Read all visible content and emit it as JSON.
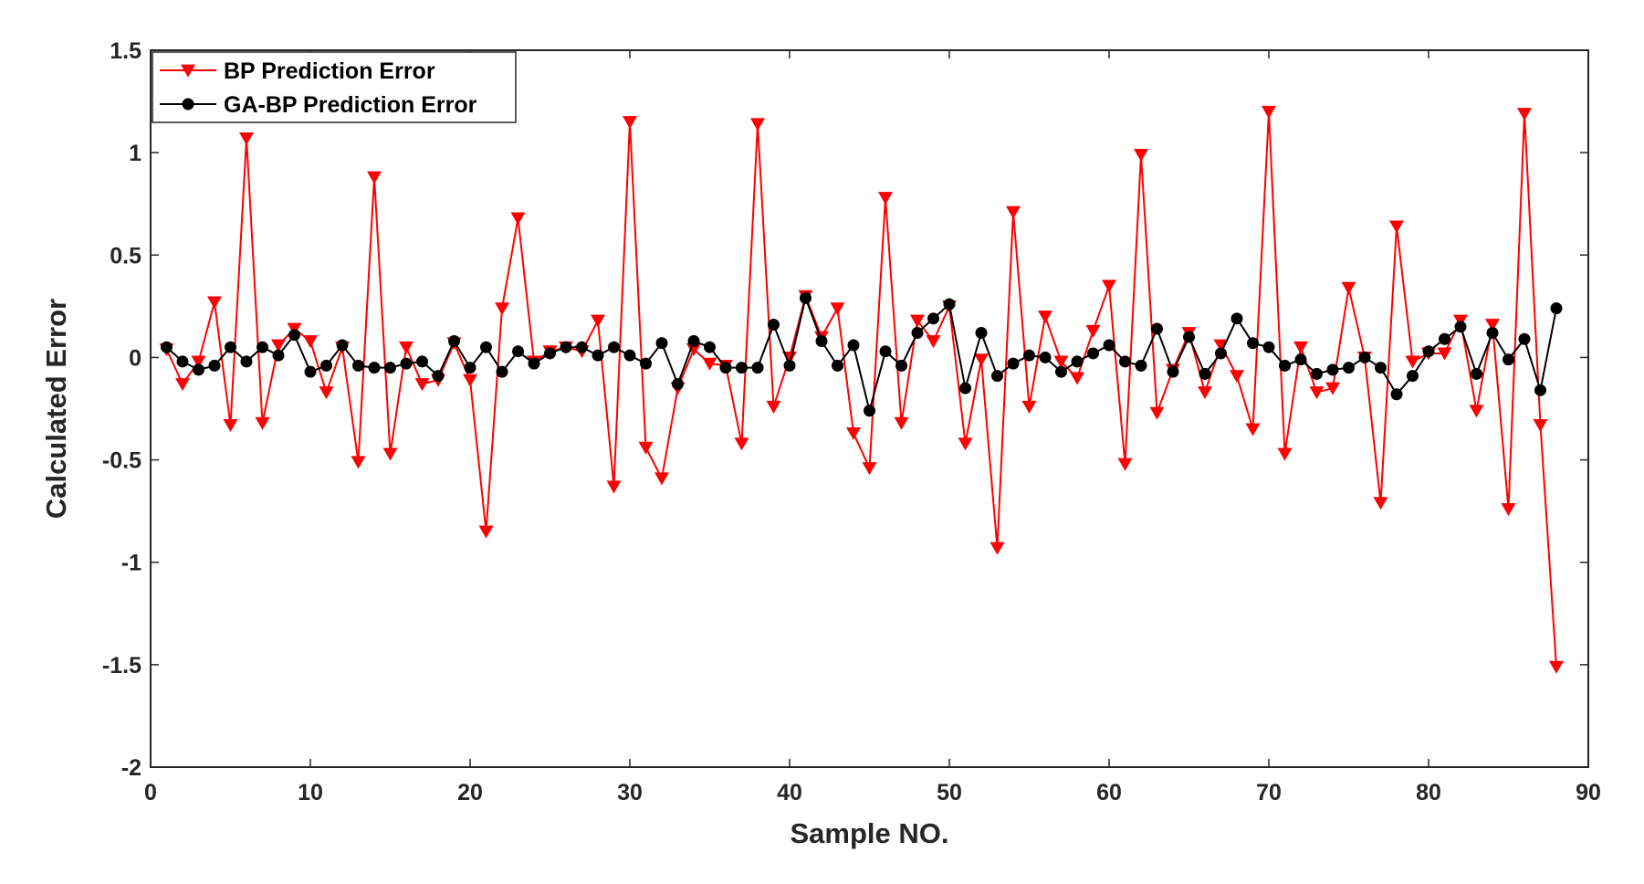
{
  "chart_data": {
    "type": "line",
    "title": "",
    "xlabel": "Sample NO.",
    "ylabel": "Calculated Error",
    "xlim": [
      0,
      90
    ],
    "ylim": [
      -2,
      1.5
    ],
    "xticks": [
      0,
      10,
      20,
      30,
      40,
      50,
      60,
      70,
      80,
      90
    ],
    "yticks": [
      -2,
      -1.5,
      -1,
      -0.5,
      0,
      0.5,
      1,
      1.5
    ],
    "xtick_labels": [
      "0",
      "10",
      "20",
      "30",
      "40",
      "50",
      "60",
      "70",
      "80",
      "90"
    ],
    "ytick_labels": [
      "-2",
      "-1.5",
      "-1",
      "-0.5",
      "0",
      "0.5",
      "1",
      "1.5"
    ],
    "grid": false,
    "legend_position": "top-left",
    "series": [
      {
        "name": "BP Prediction Error",
        "color": "#ff0000",
        "marker": "triangle-down",
        "values": [
          0.04,
          -0.13,
          -0.02,
          0.27,
          -0.33,
          1.07,
          -0.32,
          0.06,
          0.14,
          0.08,
          -0.17,
          0.05,
          -0.51,
          0.88,
          -0.47,
          0.05,
          -0.13,
          -0.11,
          0.07,
          -0.11,
          -0.85,
          0.24,
          0.68,
          -0.02,
          0.03,
          0.05,
          0.03,
          0.18,
          -0.63,
          1.15,
          -0.44,
          -0.59,
          -0.15,
          0.04,
          -0.03,
          -0.04,
          -0.42,
          1.14,
          -0.24,
          0.0,
          0.3,
          0.1,
          0.24,
          -0.37,
          -0.54,
          0.78,
          -0.32,
          0.18,
          0.08,
          0.25,
          -0.42,
          -0.01,
          -0.93,
          0.71,
          -0.24,
          0.2,
          -0.02,
          -0.1,
          0.13,
          0.35,
          -0.52,
          0.99,
          -0.27,
          -0.06,
          0.12,
          -0.17,
          0.06,
          -0.09,
          -0.35,
          1.2,
          -0.47,
          0.05,
          -0.17,
          -0.15,
          0.34,
          0.0,
          -0.71,
          0.64,
          -0.02,
          0.02,
          0.02,
          0.18,
          -0.26,
          0.16,
          -0.74,
          1.19,
          -0.33,
          -1.51
        ]
      },
      {
        "name": "GA-BP Prediction Error",
        "color": "#000000",
        "marker": "circle",
        "values": [
          0.05,
          -0.02,
          -0.06,
          -0.04,
          0.05,
          -0.02,
          0.05,
          0.01,
          0.11,
          -0.07,
          -0.04,
          0.06,
          -0.04,
          -0.05,
          -0.05,
          -0.03,
          -0.02,
          -0.09,
          0.08,
          -0.05,
          0.05,
          -0.07,
          0.03,
          -0.03,
          0.02,
          0.05,
          0.05,
          0.01,
          0.05,
          0.01,
          -0.03,
          0.07,
          -0.13,
          0.08,
          0.05,
          -0.05,
          -0.05,
          -0.05,
          0.16,
          -0.04,
          0.29,
          0.08,
          -0.04,
          0.06,
          -0.26,
          0.03,
          -0.04,
          0.12,
          0.19,
          0.26,
          -0.15,
          0.12,
          -0.09,
          -0.03,
          0.01,
          0.0,
          -0.07,
          -0.02,
          0.02,
          0.06,
          -0.02,
          -0.04,
          0.14,
          -0.07,
          0.1,
          -0.08,
          0.02,
          0.19,
          0.07,
          0.05,
          -0.04,
          -0.01,
          -0.08,
          -0.06,
          -0.05,
          0.0,
          -0.05,
          -0.18,
          -0.09,
          0.03,
          0.09,
          0.15,
          -0.08,
          0.12,
          -0.01,
          0.09,
          -0.16,
          0.24
        ]
      }
    ]
  }
}
